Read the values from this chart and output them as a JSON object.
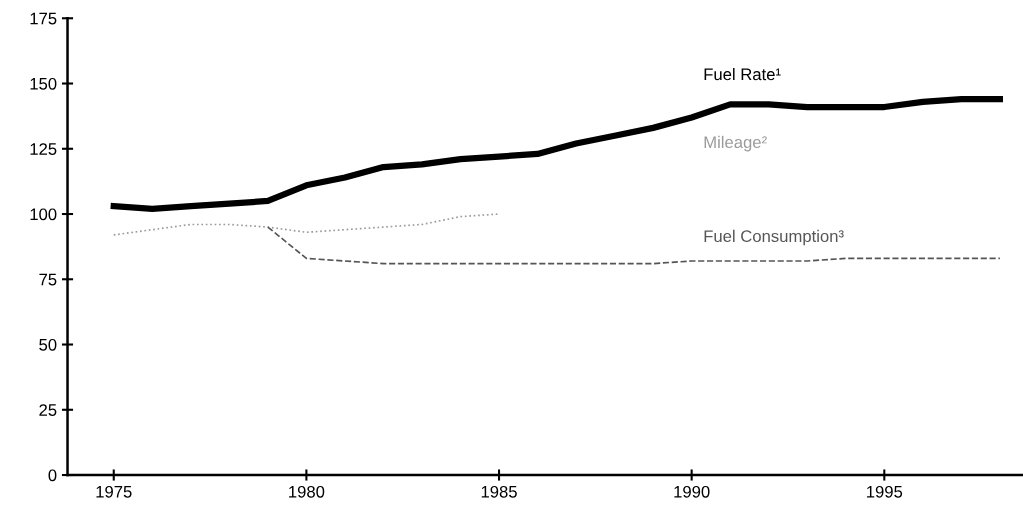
{
  "chart_data": {
    "type": "line",
    "x": [
      1975,
      1976,
      1977,
      1978,
      1979,
      1980,
      1981,
      1982,
      1983,
      1984,
      1985,
      1986,
      1987,
      1988,
      1989,
      1990,
      1991,
      1992,
      1993,
      1994,
      1995,
      1996,
      1997,
      1998
    ],
    "series": [
      {
        "name": "Fuel Rate¹",
        "color": "#000000",
        "line_style": "solid",
        "values": [
          103,
          102,
          103,
          104,
          105,
          111,
          114,
          118,
          119,
          121,
          122,
          123,
          127,
          130,
          133,
          137,
          142,
          142,
          141,
          141,
          141,
          143,
          144,
          144
        ]
      },
      {
        "name": "Mileage²",
        "color": "#9a9a9a",
        "line_style": "dotted",
        "values": [
          92,
          94,
          96,
          96,
          95,
          93,
          94,
          95,
          96,
          99,
          100,
          null,
          null,
          null,
          null,
          null,
          null,
          null,
          null,
          null,
          null,
          null,
          null,
          null
        ]
      },
      {
        "name": "Fuel Consumption³",
        "color": "#555555",
        "line_style": "dashed",
        "values": [
          null,
          null,
          null,
          null,
          95,
          83,
          82,
          81,
          81,
          81,
          81,
          81,
          81,
          81,
          81,
          82,
          82,
          82,
          82,
          83,
          83,
          83,
          83,
          83
        ]
      }
    ],
    "xlim": [
      1973.8,
      1998.6
    ],
    "xticks": [
      1975,
      1980,
      1985,
      1990,
      1995
    ],
    "ylim": [
      0,
      175
    ],
    "yticks": [
      0,
      25,
      50,
      75,
      100,
      125,
      150,
      175
    ],
    "grid": false,
    "legend": false,
    "marker": "none"
  }
}
